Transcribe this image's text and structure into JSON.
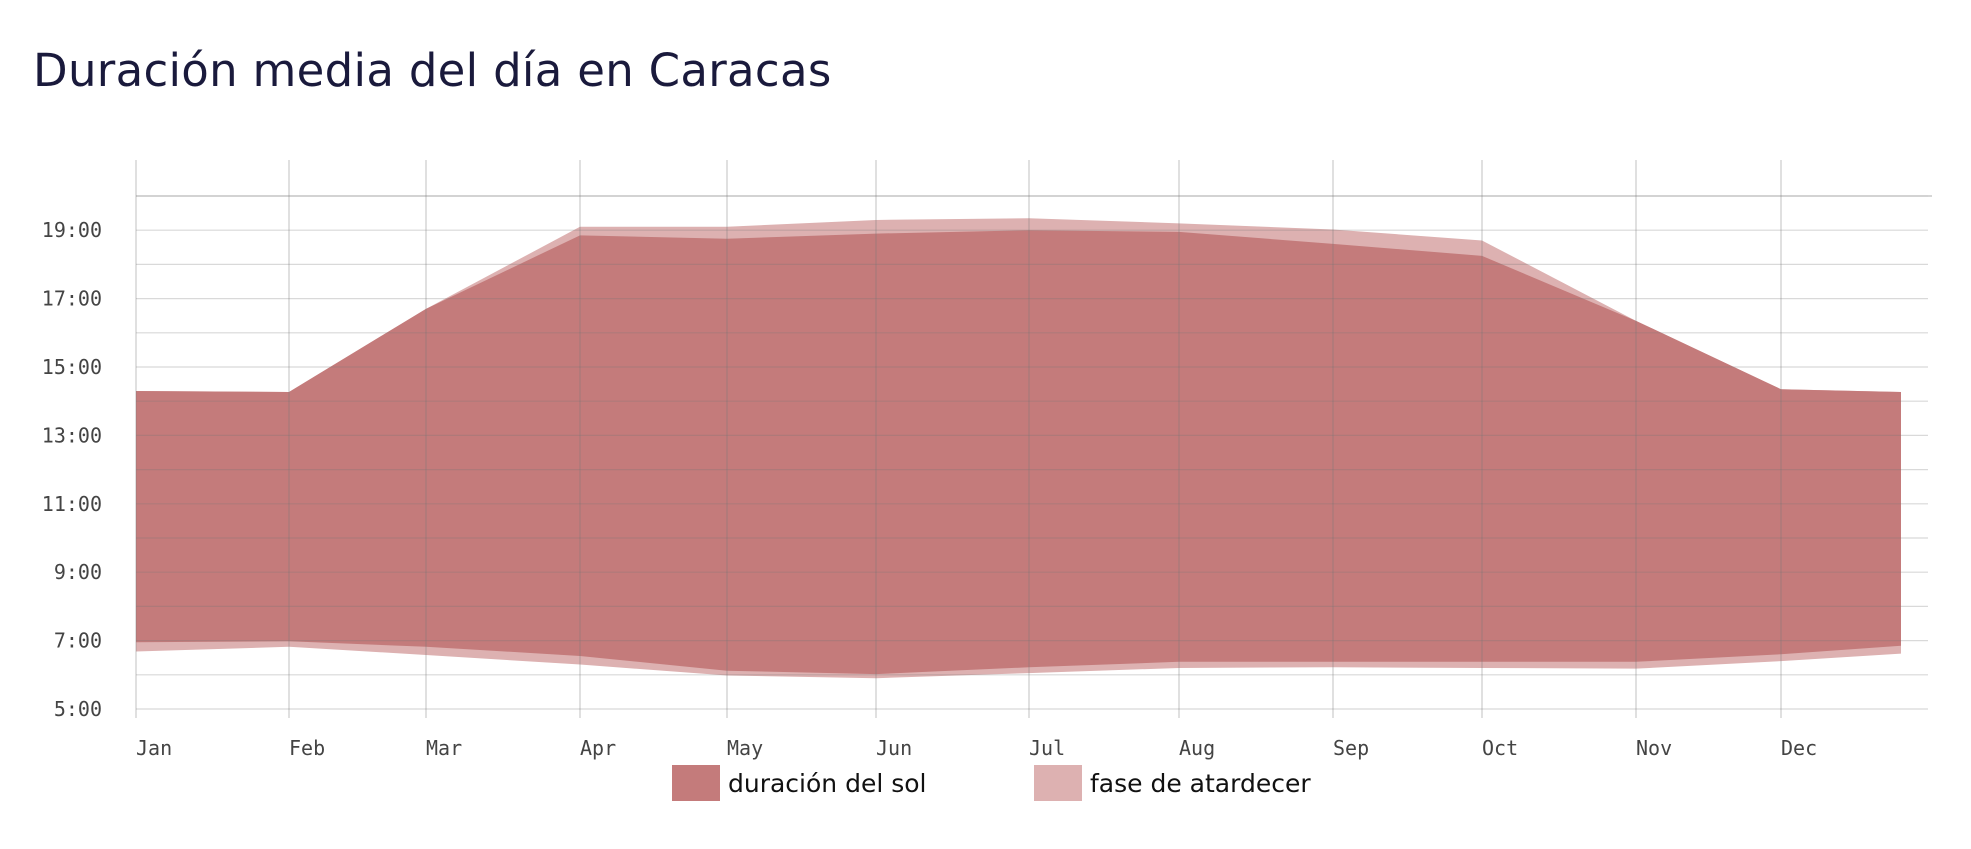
{
  "title": "Duración media del día en Caracas",
  "colors": {
    "sun_duration": "#c47b7b",
    "twilight": "#ddb1b1",
    "grid": "#cfcfcf",
    "tick": "#999999",
    "title": "#1a1a3c"
  },
  "legend": [
    {
      "label": "duración del sol",
      "color": "#c47b7b"
    },
    {
      "label": "fase de atardecer",
      "color": "#ddb1b1"
    }
  ],
  "chart_data": {
    "type": "area",
    "title": "Duración media del día en Caracas",
    "xlabel": "",
    "ylabel": "",
    "x_ticks": [
      "Jan",
      "Feb",
      "Mar",
      "Apr",
      "May",
      "Jun",
      "Jul",
      "Aug",
      "Sep",
      "Oct",
      "Nov",
      "Dec"
    ],
    "y_ticks": [
      "5:00",
      "7:00",
      "9:00",
      "11:00",
      "13:00",
      "15:00",
      "17:00",
      "19:00"
    ],
    "ylim": [
      5,
      20
    ],
    "x_unit": "month",
    "grid": true,
    "legend_position": "bottom",
    "x": [
      0,
      1,
      2,
      3,
      4,
      5,
      6,
      7,
      8,
      9,
      10,
      11,
      11.8
    ],
    "series": [
      {
        "name": "duración del sol",
        "lower": [
          6.95,
          6.98,
          6.82,
          6.55,
          6.12,
          6.02,
          6.22,
          6.38,
          6.38,
          6.38,
          6.38,
          6.6,
          6.85
        ],
        "upper": [
          14.3,
          14.27,
          16.7,
          18.85,
          18.75,
          18.9,
          19.0,
          18.95,
          18.6,
          18.25,
          16.35,
          14.35,
          14.27
        ]
      },
      {
        "name": "fase de atardecer",
        "lower": [
          6.68,
          6.82,
          6.58,
          6.3,
          5.98,
          5.9,
          6.05,
          6.2,
          6.22,
          6.2,
          6.18,
          6.4,
          6.62
        ],
        "upper": [
          14.3,
          14.27,
          16.7,
          19.1,
          19.1,
          19.3,
          19.35,
          19.2,
          19.02,
          18.7,
          16.35,
          14.35,
          14.27
        ]
      }
    ]
  }
}
